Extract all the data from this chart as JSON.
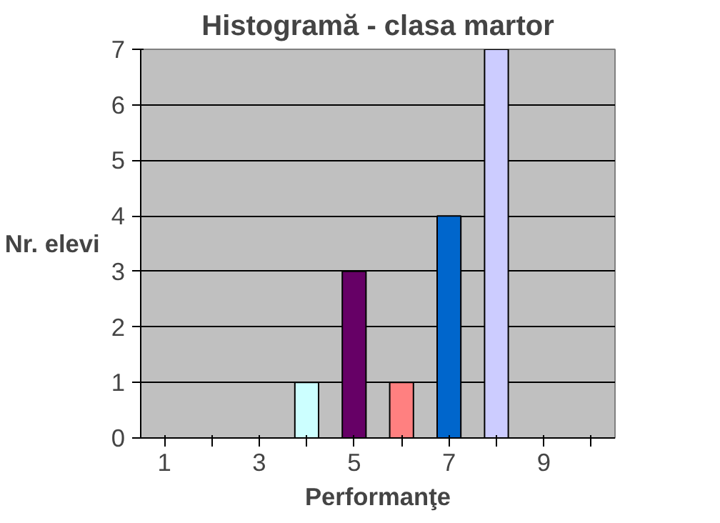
{
  "chart_data": {
    "type": "bar",
    "title": "Histogramă - clasa martor",
    "xlabel": "Performanţe",
    "ylabel": "Nr. elevi",
    "categories": [
      "1",
      null,
      "3",
      null,
      "5",
      null,
      "7",
      null,
      "9",
      null
    ],
    "values": [
      0,
      0,
      0,
      1,
      3,
      1,
      4,
      7,
      0,
      0
    ],
    "colors": [
      "#000000",
      "#000000",
      "#000000",
      "#ccffff",
      "#660066",
      "#ff8080",
      "#0066cc",
      "#ccccff",
      "#000000",
      "#000000"
    ],
    "ylim": [
      0,
      7
    ],
    "yticks": [
      0,
      1,
      2,
      3,
      4,
      5,
      6,
      7
    ],
    "grid": "y"
  }
}
